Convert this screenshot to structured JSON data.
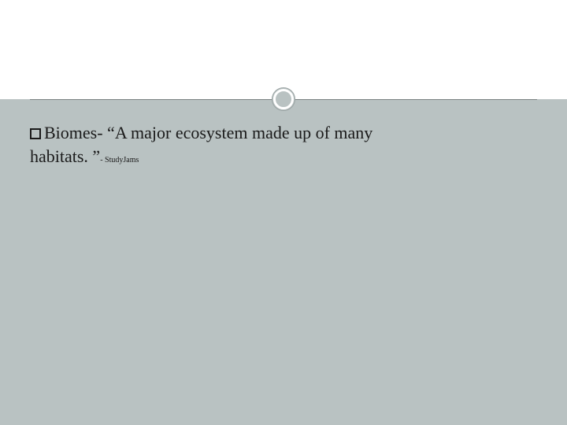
{
  "slide": {
    "background_color": "#b9c2c2",
    "header_color": "#ffffff",
    "divider_color": "#7a8282",
    "ring_border_color": "#ffffff",
    "ring_outline_color": "#9aa3a3",
    "text_color": "#1a1a1a",
    "body_fontsize": 22,
    "citation_fontsize": 10,
    "bullet": {
      "term": "Biomes",
      "definition_part1": "- “A major ecosystem made up of many",
      "definition_part2": "habitats. ”",
      "citation": "- StudyJams"
    }
  }
}
